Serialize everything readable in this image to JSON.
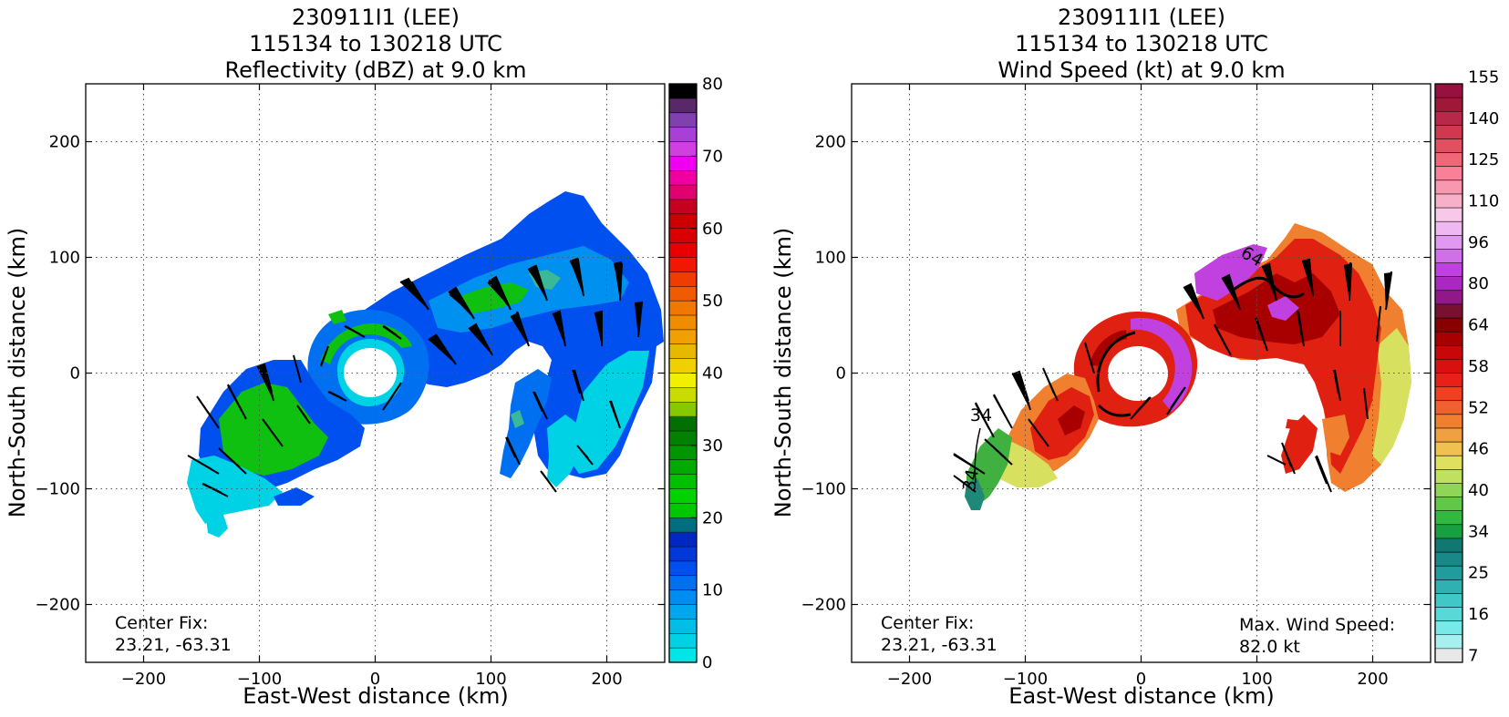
{
  "chart_data": [
    {
      "type": "heatmap",
      "title_lines": [
        "230911I1 (LEE)",
        "115134 to 130218 UTC",
        "Reflectivity (dBZ) at 9.0 km"
      ],
      "xlabel": "East-West distance (km)",
      "ylabel": "North-South distance (km)",
      "xlim": [
        -250,
        250
      ],
      "ylim": [
        -250,
        250
      ],
      "xticks": [
        -200,
        -100,
        0,
        100,
        200
      ],
      "yticks": [
        -200,
        -100,
        0,
        100,
        200
      ],
      "grid": true,
      "center_fix_label": "Center Fix:",
      "center_fix_value": "23.21, -63.31",
      "colorbar": {
        "min": 0,
        "max": 80,
        "ticks": [
          0,
          10,
          20,
          30,
          40,
          50,
          60,
          70,
          80
        ],
        "colors": [
          "#00e6e6",
          "#00d2e6",
          "#00bee6",
          "#00a6ee",
          "#008cf0",
          "#0070f0",
          "#0050f0",
          "#0038d8",
          "#0028c0",
          "#006e7e",
          "#00c800",
          "#00d200",
          "#00c000",
          "#00aa00",
          "#009600",
          "#008200",
          "#007000",
          "#88c800",
          "#c8dc00",
          "#f0f000",
          "#f0d000",
          "#e8b800",
          "#f0a000",
          "#f08c00",
          "#f07800",
          "#f05a00",
          "#f03c00",
          "#f01800",
          "#e80000",
          "#d80000",
          "#cc0000",
          "#c80020",
          "#e0006e",
          "#f000a0",
          "#f000f0",
          "#d040e0",
          "#a840d8",
          "#8040b0",
          "#582868",
          "#000000"
        ]
      },
      "colors": {
        "light": "#00e6e6",
        "mid": "#0090f0",
        "dark": "#0030d0",
        "green": "#10c010",
        "teal": "#3ab898"
      }
    },
    {
      "type": "heatmap",
      "title_lines": [
        "230911I1 (LEE)",
        "115134 to 130218 UTC",
        "Wind Speed (kt) at 9.0 km"
      ],
      "xlabel": "East-West distance (km)",
      "ylabel": "North-South distance (km)",
      "xlim": [
        -250,
        250
      ],
      "ylim": [
        -250,
        250
      ],
      "xticks": [
        -200,
        -100,
        0,
        100,
        200
      ],
      "yticks": [
        -200,
        -100,
        0,
        100,
        200
      ],
      "grid": true,
      "center_fix_label": "Center Fix:",
      "center_fix_value": "23.21, -63.31",
      "max_wind_label": "Max. Wind Speed:",
      "max_wind_value": "82.0 kt",
      "contour_labels": [
        "34",
        "34",
        "64"
      ],
      "colorbar": {
        "ticks": [
          "7",
          "16",
          "25",
          "34",
          "40",
          "46",
          "52",
          "58",
          "64",
          "80",
          "96",
          "110",
          "125",
          "140",
          "155"
        ],
        "colors": [
          "#e8e8e8",
          "#a8f0f0",
          "#78e8e8",
          "#58d8d8",
          "#40c8c8",
          "#30b0b0",
          "#209c9c",
          "#188888",
          "#107870",
          "#18a040",
          "#30b840",
          "#60c848",
          "#90d458",
          "#c0e060",
          "#e0e060",
          "#f0c050",
          "#f0a040",
          "#f08030",
          "#f06030",
          "#f04020",
          "#e82018",
          "#d81010",
          "#c80808",
          "#a80000",
          "#880000",
          "#781030",
          "#901888",
          "#a828c0",
          "#c040e0",
          "#d070e8",
          "#e098f0",
          "#f0b8f0",
          "#f8c8e8",
          "#f8b0c8",
          "#f898b0",
          "#f88098",
          "#f06878",
          "#e05060",
          "#d03850",
          "#b82848",
          "#a01838",
          "#981040"
        ]
      },
      "colors": {
        "green": "#40b040",
        "yellow": "#d8e060",
        "orange": "#f08030",
        "red": "#e02010",
        "darkred": "#a80000",
        "purple": "#c040e0",
        "teal": "#208878"
      }
    }
  ]
}
